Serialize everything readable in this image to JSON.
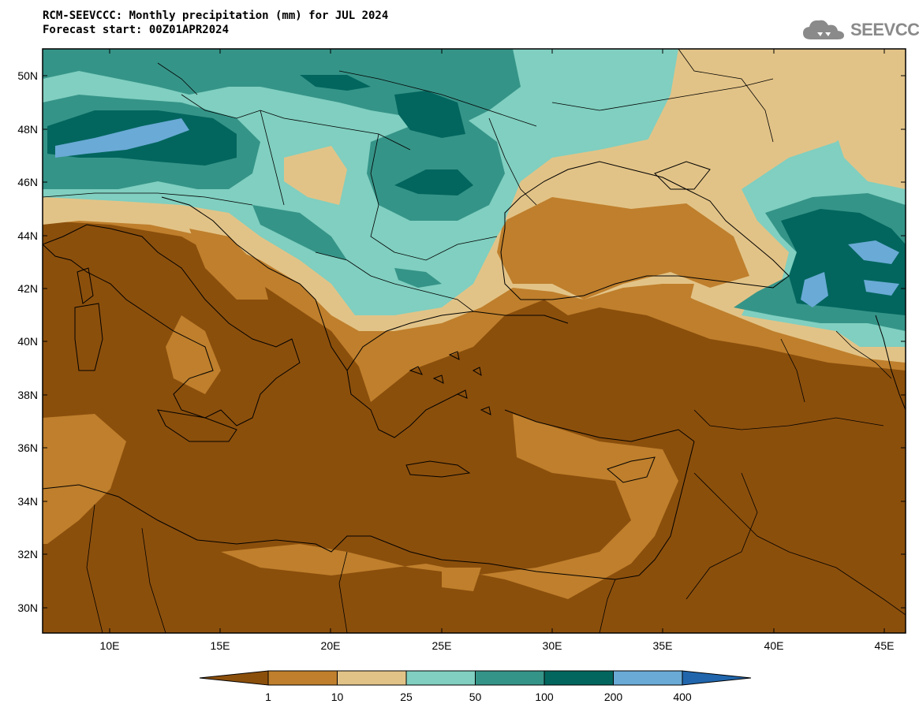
{
  "title_line1": "RCM-SEEVCCC: Monthly precipitation (mm) for JUL 2024",
  "title_line2": "Forecast start: 00Z01APR2024",
  "logo_text": "SEEVCCC",
  "lat_labels": [
    "50N",
    "48N",
    "46N",
    "44N",
    "42N",
    "40N",
    "38N",
    "36N",
    "34N",
    "32N",
    "30N"
  ],
  "lon_labels": [
    "10E",
    "15E",
    "20E",
    "25E",
    "30E",
    "35E",
    "40E",
    "45E"
  ],
  "colorbar": {
    "boundaries": [
      "1",
      "10",
      "25",
      "50",
      "100",
      "200",
      "400"
    ],
    "colors": [
      "#8b4f0c",
      "#bf7f2c",
      "#e2c387",
      "#80cfc0",
      "#359488",
      "#02665e",
      "#6aaad6",
      "#2166ac"
    ]
  }
}
